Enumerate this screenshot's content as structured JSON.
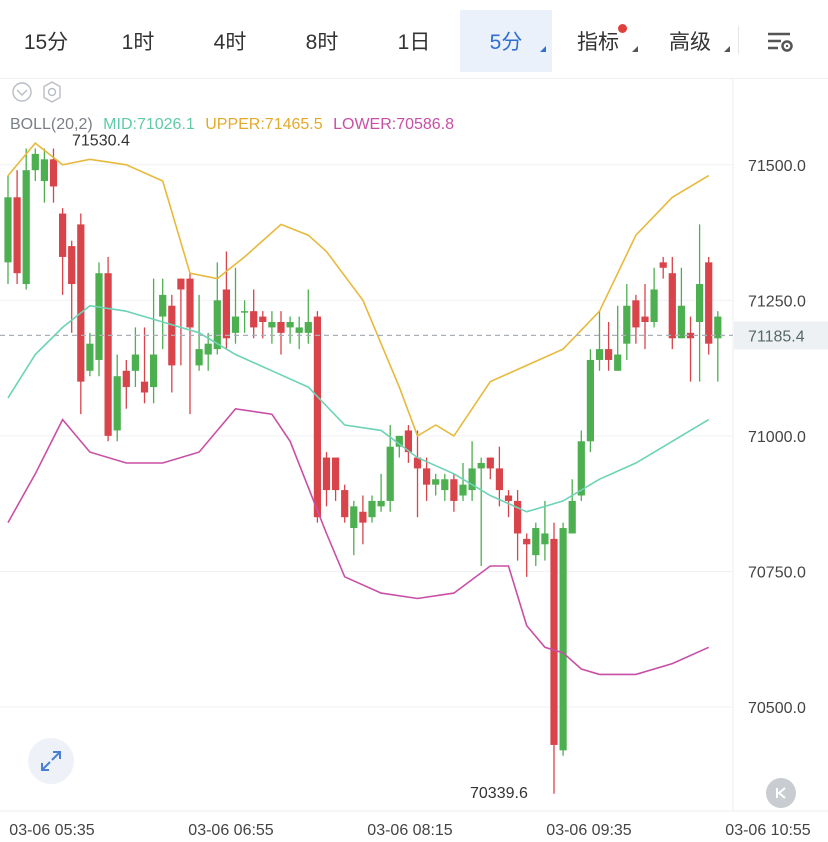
{
  "tabs": [
    {
      "label": "15分",
      "active": false
    },
    {
      "label": "1时",
      "active": false
    },
    {
      "label": "4时",
      "active": false
    },
    {
      "label": "8时",
      "active": false
    },
    {
      "label": "1日",
      "active": false
    },
    {
      "label": "5分",
      "active": true
    },
    {
      "label": "指标",
      "active": false
    },
    {
      "label": "高级",
      "active": false
    }
  ],
  "icons": {
    "settings": "chart-settings-icon",
    "expand": "expand-arrows-icon",
    "skip": "skip-to-latest-icon",
    "eye": "eye-toggle-icon",
    "gear": "indicator-gear-icon"
  },
  "colors": {
    "up": "#4caf50",
    "down": "#d9434a",
    "mid": "#6cd3b6",
    "upper": "#e7b93c",
    "lower": "#c94fa6",
    "accent": "#2f6fd1",
    "dot": "#e0403c"
  },
  "chart_data": {
    "type": "candlestick",
    "indicator": {
      "name": "BOLL(20,2)",
      "mid_label": "MID:71026.1",
      "upper_label": "UPPER:71465.5",
      "lower_label": "LOWER:70586.8"
    },
    "price_ticks": [
      "71500.0",
      "71250.0",
      "71000.0",
      "70750.0",
      "70500.0"
    ],
    "price_tick_values": [
      71500,
      71250,
      71000,
      70750,
      70500
    ],
    "y_range": [
      70310,
      71660
    ],
    "time_ticks": [
      "03-06 05:35",
      "03-06 06:55",
      "03-06 08:15",
      "03-06 09:35",
      "03-06 10:55"
    ],
    "current_price": "71185.4",
    "current_price_value": 71185.4,
    "high_annotation": "71530.4",
    "low_annotation": "70339.6",
    "high_value": 71530.4,
    "low_value": 70339.6,
    "candles": [
      [
        71320,
        71440,
        71280,
        71480
      ],
      [
        71440,
        71300,
        71280,
        71490
      ],
      [
        71280,
        71490,
        71270,
        71530
      ],
      [
        71490,
        71520,
        71470,
        71530
      ],
      [
        71470,
        71510,
        71430,
        71530
      ],
      [
        71510,
        71460,
        71430,
        71530
      ],
      [
        71410,
        71330,
        71260,
        71420
      ],
      [
        71350,
        71280,
        71190,
        71360
      ],
      [
        71390,
        71100,
        71040,
        71410
      ],
      [
        71120,
        71170,
        71110,
        71190
      ],
      [
        71140,
        71300,
        71110,
        71320
      ],
      [
        71300,
        71000,
        70990,
        71330
      ],
      [
        71010,
        71110,
        70990,
        71150
      ],
      [
        71120,
        71090,
        71050,
        71140
      ],
      [
        71120,
        71150,
        71090,
        71200
      ],
      [
        71100,
        71080,
        71060,
        71200
      ],
      [
        71090,
        71150,
        71060,
        71290
      ],
      [
        71220,
        71260,
        71160,
        71290
      ],
      [
        71240,
        71130,
        71080,
        71260
      ],
      [
        71290,
        71270,
        71130,
        71290
      ],
      [
        71290,
        71200,
        71040,
        71300
      ],
      [
        71130,
        71160,
        71120,
        71260
      ],
      [
        71150,
        71170,
        71120,
        71190
      ],
      [
        71160,
        71250,
        71150,
        71320
      ],
      [
        71270,
        71180,
        71160,
        71340
      ],
      [
        71190,
        71220,
        71170,
        71310
      ],
      [
        71230,
        71230,
        71190,
        71250
      ],
      [
        71230,
        71200,
        71180,
        71270
      ],
      [
        71220,
        71210,
        71180,
        71230
      ],
      [
        71200,
        71210,
        71170,
        71230
      ],
      [
        71210,
        71190,
        71150,
        71230
      ],
      [
        71200,
        71210,
        71170,
        71220
      ],
      [
        71190,
        71200,
        71160,
        71220
      ],
      [
        71190,
        71210,
        71170,
        71270
      ],
      [
        71220,
        70850,
        70840,
        71230
      ],
      [
        70960,
        70900,
        70870,
        70970
      ],
      [
        70960,
        70900,
        70880,
        70960
      ],
      [
        70900,
        70850,
        70840,
        70910
      ],
      [
        70830,
        70870,
        70780,
        70880
      ],
      [
        70860,
        70840,
        70800,
        70890
      ],
      [
        70850,
        70880,
        70840,
        70890
      ],
      [
        70870,
        70880,
        70860,
        70930
      ],
      [
        70880,
        70980,
        70860,
        71020
      ],
      [
        70980,
        71000,
        70960,
        71000
      ],
      [
        71010,
        70970,
        70950,
        71020
      ],
      [
        70960,
        70940,
        70850,
        71010
      ],
      [
        70940,
        70910,
        70880,
        70960
      ],
      [
        70910,
        70920,
        70890,
        70930
      ],
      [
        70900,
        70920,
        70880,
        70930
      ],
      [
        70920,
        70880,
        70860,
        70930
      ],
      [
        70890,
        70910,
        70880,
        70950
      ],
      [
        70900,
        70940,
        70880,
        70990
      ],
      [
        70940,
        70950,
        70760,
        70960
      ],
      [
        70960,
        70940,
        70920,
        70960
      ],
      [
        70940,
        70900,
        70870,
        70980
      ],
      [
        70890,
        70880,
        70850,
        70900
      ],
      [
        70880,
        70820,
        70770,
        70900
      ],
      [
        70810,
        70800,
        70740,
        70820
      ],
      [
        70780,
        70830,
        70760,
        70840
      ],
      [
        70800,
        70820,
        70770,
        70880
      ],
      [
        70810,
        70430,
        70340,
        70840
      ],
      [
        70420,
        70830,
        70410,
        70840
      ],
      [
        70820,
        70880,
        70820,
        70920
      ],
      [
        70890,
        70990,
        70880,
        71010
      ],
      [
        70990,
        71140,
        70970,
        71160
      ],
      [
        71140,
        71160,
        71120,
        71230
      ],
      [
        71160,
        71140,
        71120,
        71210
      ],
      [
        71120,
        71150,
        71120,
        71240
      ],
      [
        71170,
        71240,
        71140,
        71280
      ],
      [
        71250,
        71200,
        71170,
        71260
      ],
      [
        71220,
        71210,
        71160,
        71280
      ],
      [
        71210,
        71270,
        71200,
        71310
      ],
      [
        71320,
        71310,
        71290,
        71330
      ],
      [
        71300,
        71180,
        71160,
        71330
      ],
      [
        71180,
        71240,
        71180,
        71310
      ],
      [
        71190,
        71180,
        71100,
        71220
      ],
      [
        71210,
        71280,
        71100,
        71390
      ],
      [
        71320,
        71170,
        71150,
        71330
      ],
      [
        71180,
        71220,
        71100,
        71230
      ]
    ],
    "mid_line": [
      [
        0,
        71070
      ],
      [
        3,
        71150
      ],
      [
        6,
        71200
      ],
      [
        9,
        71240
      ],
      [
        13,
        71230
      ],
      [
        17,
        71210
      ],
      [
        21,
        71190
      ],
      [
        25,
        71150
      ],
      [
        29,
        71120
      ],
      [
        33,
        71090
      ],
      [
        37,
        71020
      ],
      [
        41,
        71010
      ],
      [
        45,
        70960
      ],
      [
        49,
        70930
      ],
      [
        53,
        70890
      ],
      [
        57,
        70860
      ],
      [
        59,
        70870
      ],
      [
        61,
        70880
      ],
      [
        65,
        70920
      ],
      [
        69,
        70950
      ],
      [
        73,
        70990
      ],
      [
        77,
        71030
      ]
    ],
    "upper_line": [
      [
        0,
        71480
      ],
      [
        3,
        71540
      ],
      [
        6,
        71500
      ],
      [
        9,
        71510
      ],
      [
        13,
        71500
      ],
      [
        17,
        71470
      ],
      [
        20,
        71300
      ],
      [
        23,
        71290
      ],
      [
        26,
        71330
      ],
      [
        30,
        71390
      ],
      [
        33,
        71370
      ],
      [
        35,
        71340
      ],
      [
        39,
        71250
      ],
      [
        43,
        71090
      ],
      [
        45,
        71000
      ],
      [
        47,
        71020
      ],
      [
        49,
        71000
      ],
      [
        53,
        71100
      ],
      [
        57,
        71130
      ],
      [
        61,
        71160
      ],
      [
        65,
        71230
      ],
      [
        69,
        71370
      ],
      [
        73,
        71440
      ],
      [
        77,
        71480
      ]
    ],
    "lower_line": [
      [
        0,
        70840
      ],
      [
        3,
        70930
      ],
      [
        6,
        71030
      ],
      [
        9,
        70970
      ],
      [
        13,
        70950
      ],
      [
        17,
        70950
      ],
      [
        21,
        70970
      ],
      [
        25,
        71050
      ],
      [
        29,
        71040
      ],
      [
        31,
        70990
      ],
      [
        35,
        70820
      ],
      [
        37,
        70740
      ],
      [
        41,
        70710
      ],
      [
        45,
        70700
      ],
      [
        49,
        70710
      ],
      [
        53,
        70760
      ],
      [
        55,
        70760
      ],
      [
        57,
        70650
      ],
      [
        59,
        70610
      ],
      [
        61,
        70600
      ],
      [
        63,
        70570
      ],
      [
        65,
        70560
      ],
      [
        69,
        70560
      ],
      [
        73,
        70580
      ],
      [
        77,
        70610
      ]
    ]
  }
}
